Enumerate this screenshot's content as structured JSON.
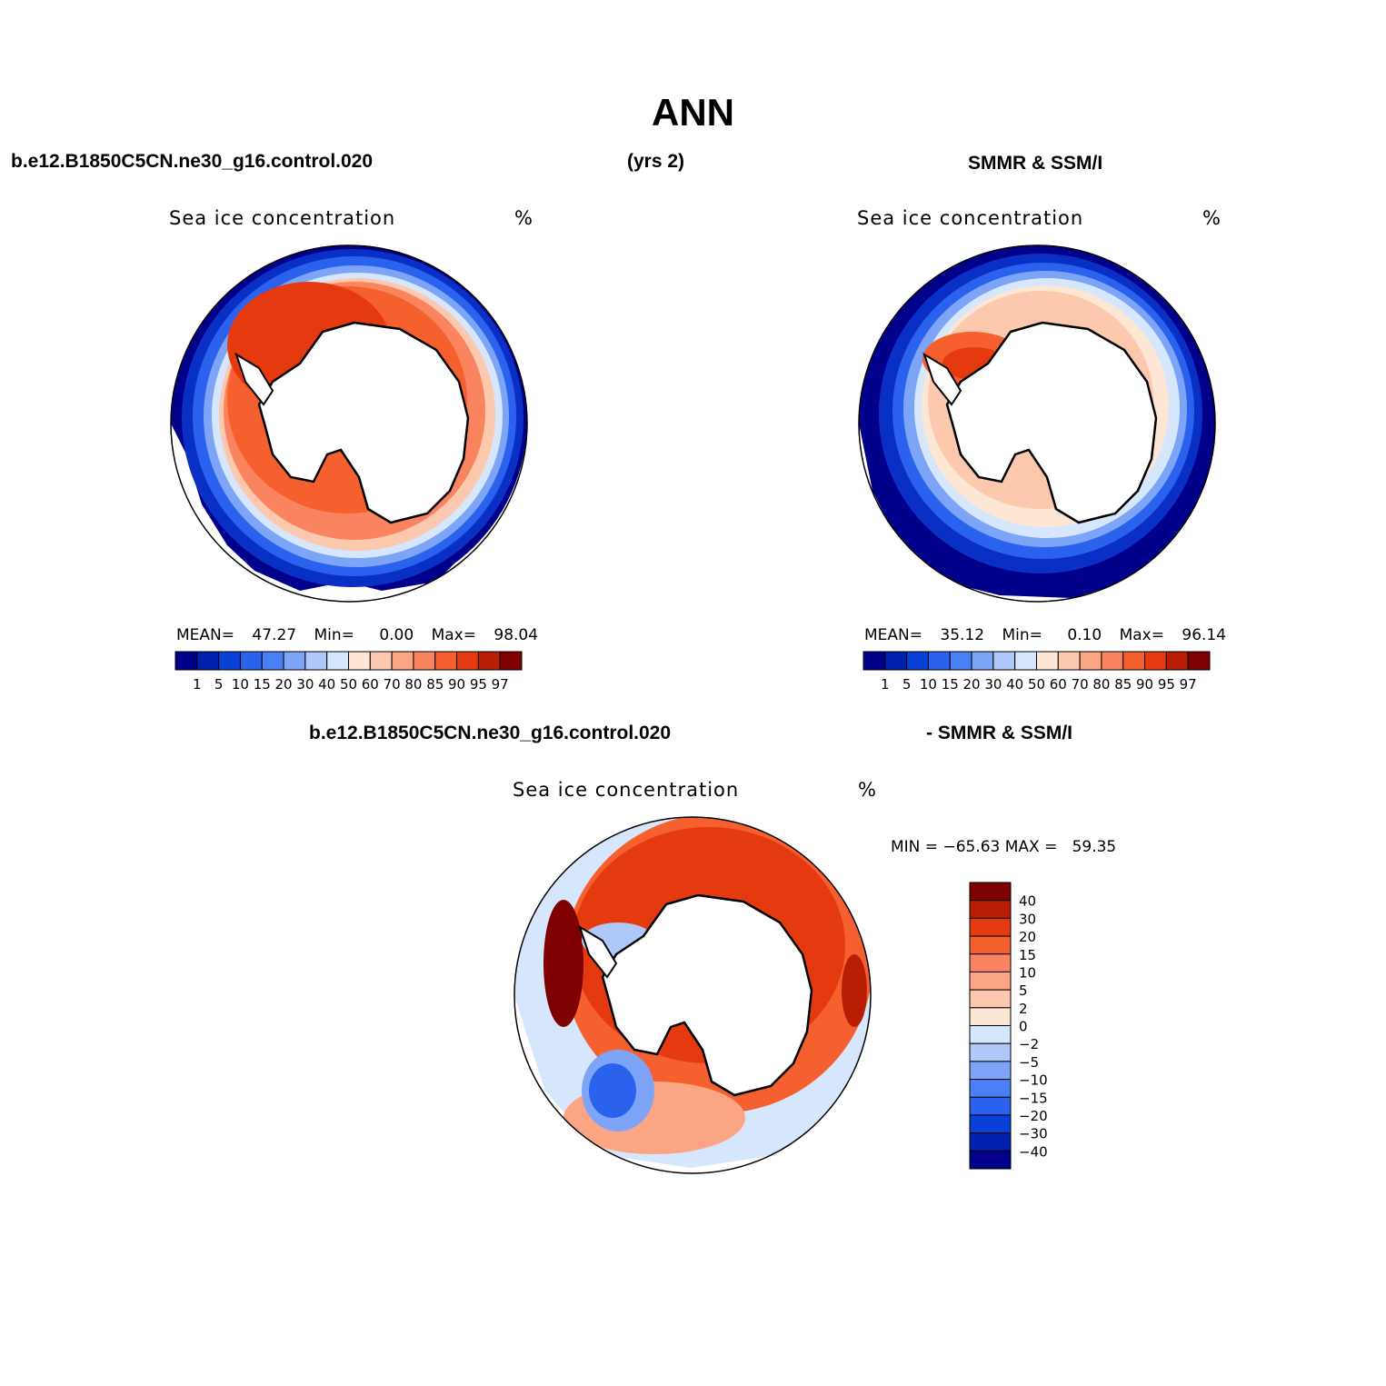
{
  "title": "ANN",
  "header": {
    "case": "b.e12.B1850C5CN.ne30_g16.control.020",
    "years": "(yrs 2)",
    "obs": "SMMR & SSM/I"
  },
  "panels": {
    "model": {
      "variable": "Sea ice concentration",
      "units": "%",
      "mean_label": "MEAN=",
      "mean": "47.27",
      "min_label": "Min=",
      "min": "0.00",
      "max_label": "Max=",
      "max": "98.04"
    },
    "obs": {
      "variable": "Sea ice concentration",
      "units": "%",
      "mean_label": "MEAN=",
      "mean": "35.12",
      "min_label": "Min=",
      "min": "0.10",
      "max_label": "Max=",
      "max": "96.14"
    },
    "diff": {
      "left_title": "b.e12.B1850C5CN.ne30_g16.control.020",
      "right_title": "- SMMR & SSM/I",
      "variable": "Sea ice concentration",
      "units": "%",
      "minmax": "MIN = −65.63 MAX =   59.35"
    }
  },
  "colorbar_conc": {
    "labels": [
      "1",
      "5",
      "10",
      "15",
      "20",
      "30",
      "40",
      "50",
      "60",
      "70",
      "80",
      "85",
      "90",
      "95",
      "97"
    ],
    "colors": [
      "#00008b",
      "#0020b0",
      "#0840d8",
      "#2a62ee",
      "#4a80f5",
      "#7ea4f8",
      "#aec8fa",
      "#d6e6fc",
      "#fee6d4",
      "#fcc8ae",
      "#fba584",
      "#fa8460",
      "#f6602f",
      "#e53a10",
      "#b81e04",
      "#7e0000"
    ]
  },
  "colorbar_diff": {
    "labels": [
      "40",
      "30",
      "20",
      "15",
      "10",
      "5",
      "2",
      "0",
      "−2",
      "−5",
      "−10",
      "−15",
      "−20",
      "−30",
      "−40"
    ],
    "colors": [
      "#7e0000",
      "#b81e04",
      "#e53a10",
      "#f6602f",
      "#fa8460",
      "#fba584",
      "#fcc8ae",
      "#fee6d4",
      "#d6e6fc",
      "#aec8fa",
      "#7ea4f8",
      "#4a80f5",
      "#2a62ee",
      "#0840d8",
      "#0020b0",
      "#00008b"
    ]
  }
}
